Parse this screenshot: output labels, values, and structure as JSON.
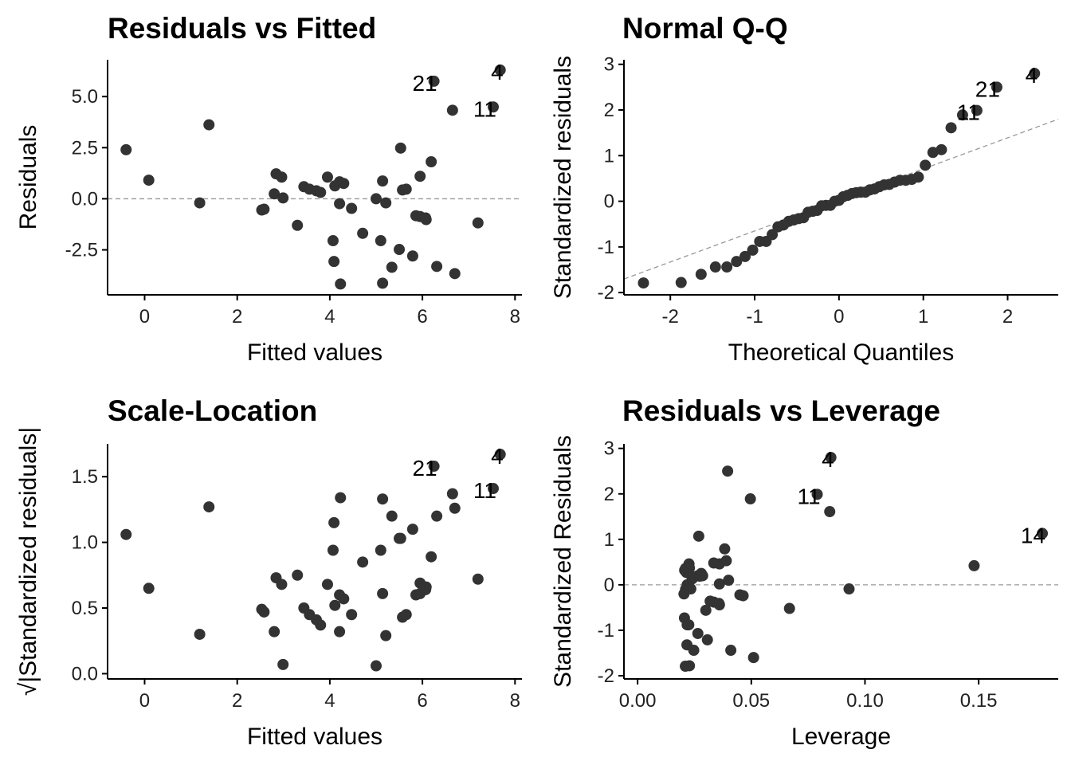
{
  "chart_data": [
    {
      "type": "scatter",
      "title": "Residuals vs Fitted",
      "xlabel": "Fitted values",
      "ylabel": "Residuals",
      "xlim": [
        -0.8,
        8.15
      ],
      "ylim": [
        -4.7,
        6.8
      ],
      "xticks": [
        "0",
        "2",
        "4",
        "6",
        "8"
      ],
      "yticks": [
        "5.0",
        "2.5",
        "0.0",
        "-2.5"
      ],
      "reference_line": {
        "type": "horizontal",
        "y": 0,
        "style": "dashed"
      },
      "x": [
        -0.4,
        0.09,
        1.19,
        1.39,
        2.53,
        2.58,
        2.84,
        2.8,
        2.96,
        2.99,
        3.3,
        3.44,
        3.56,
        3.71,
        3.8,
        3.95,
        4.07,
        4.09,
        4.11,
        4.21,
        4.21,
        4.23,
        4.3,
        4.47,
        4.71,
        5.0,
        5.1,
        5.14,
        5.14,
        5.21,
        5.34,
        5.5,
        5.53,
        5.57,
        5.65,
        5.79,
        5.86,
        5.95,
        5.95,
        6.07,
        6.08,
        6.19,
        6.31,
        6.65,
        6.7,
        7.2,
        6.25,
        7.53,
        7.68
      ],
      "y": [
        2.4,
        0.91,
        -0.2,
        3.62,
        -0.55,
        -0.51,
        1.22,
        0.24,
        1.06,
        0.04,
        -1.3,
        0.59,
        0.47,
        0.39,
        0.31,
        1.06,
        -2.05,
        -3.07,
        0.63,
        0.83,
        -0.24,
        -4.17,
        0.75,
        -0.47,
        -1.69,
        0.0,
        -2.05,
        0.87,
        -4.13,
        -0.2,
        -3.35,
        -2.48,
        2.48,
        0.43,
        0.47,
        -2.8,
        -0.83,
        -0.87,
        1.1,
        -0.94,
        -1.02,
        1.81,
        -3.31,
        4.33,
        -3.66,
        -1.18,
        5.75,
        4.49,
        6.3
      ],
      "point_labels": [
        {
          "index": 46,
          "text": "21"
        },
        {
          "index": 47,
          "text": "11"
        },
        {
          "index": 48,
          "text": "4"
        }
      ]
    },
    {
      "type": "scatter",
      "title": "Normal Q-Q",
      "xlabel": "Theoretical Quantiles",
      "ylabel": "Standardized residuals",
      "xlim": [
        -2.55,
        2.6
      ],
      "ylim": [
        -2.05,
        3.1
      ],
      "xticks": [
        "-2",
        "-1",
        "0",
        "1",
        "2"
      ],
      "yticks": [
        "3",
        "2",
        "1",
        "0",
        "-1",
        "-2"
      ],
      "reference_line": {
        "type": "line",
        "intercept": 0.03,
        "slope": 0.68,
        "style": "dashed"
      },
      "sample": [
        1.13,
        0.42,
        -0.09,
        1.61,
        -0.24,
        -0.22,
        0.53,
        0.1,
        0.46,
        0.02,
        -0.56,
        0.25,
        0.2,
        0.17,
        0.13,
        0.46,
        -0.88,
        -1.32,
        0.27,
        0.36,
        -0.1,
        -1.79,
        0.32,
        -0.2,
        -0.73,
        0.0,
        -0.88,
        0.37,
        -1.78,
        -0.09,
        -1.44,
        -1.07,
        1.07,
        0.19,
        0.2,
        -1.21,
        -0.36,
        -0.38,
        0.48,
        -0.41,
        -0.44,
        0.79,
        -1.44,
        1.89,
        -1.6,
        -0.52,
        2.5,
        1.99,
        2.8
      ],
      "point_labels": [
        {
          "index": 46,
          "text": "21"
        },
        {
          "index": 47,
          "text": "11"
        },
        {
          "index": 48,
          "text": "4"
        }
      ]
    },
    {
      "type": "scatter",
      "title": "Scale-Location",
      "xlabel": "Fitted values",
      "ylabel": "√|Standardized residuals|",
      "xlim": [
        -0.8,
        8.15
      ],
      "ylim": [
        -0.04,
        1.75
      ],
      "xticks": [
        "0",
        "2",
        "4",
        "6",
        "8"
      ],
      "yticks": [
        "1.5",
        "1.0",
        "0.5",
        "0.0"
      ],
      "x": [
        -0.4,
        0.09,
        1.19,
        1.39,
        2.53,
        2.58,
        2.84,
        2.8,
        2.96,
        2.99,
        3.3,
        3.44,
        3.56,
        3.71,
        3.8,
        3.95,
        4.07,
        4.09,
        4.11,
        4.21,
        4.21,
        4.23,
        4.3,
        4.47,
        4.71,
        5.0,
        5.1,
        5.14,
        5.14,
        5.21,
        5.34,
        5.5,
        5.53,
        5.57,
        5.65,
        5.79,
        5.86,
        5.95,
        5.95,
        6.07,
        6.08,
        6.19,
        6.31,
        6.65,
        6.7,
        7.2,
        6.25,
        7.53,
        7.68
      ],
      "y": [
        1.06,
        0.65,
        0.3,
        1.27,
        0.49,
        0.47,
        0.73,
        0.32,
        0.68,
        0.07,
        0.75,
        0.5,
        0.45,
        0.41,
        0.37,
        0.68,
        0.94,
        1.15,
        0.52,
        0.6,
        0.32,
        1.34,
        0.57,
        0.45,
        0.85,
        0.06,
        0.94,
        0.61,
        1.33,
        0.29,
        1.2,
        1.03,
        1.03,
        0.43,
        0.45,
        1.1,
        0.6,
        0.61,
        0.69,
        0.64,
        0.66,
        0.89,
        1.2,
        1.37,
        1.26,
        0.72,
        1.58,
        1.41,
        1.67
      ],
      "point_labels": [
        {
          "index": 46,
          "text": "21"
        },
        {
          "index": 47,
          "text": "11"
        },
        {
          "index": 48,
          "text": "4"
        }
      ]
    },
    {
      "type": "scatter",
      "title": "Residuals vs Leverage",
      "xlabel": "Leverage",
      "ylabel": "Standardized Residuals",
      "xlim": [
        -0.006,
        0.185
      ],
      "ylim": [
        -2.07,
        3.1
      ],
      "xticks": [
        "0.00",
        "0.05",
        "0.10",
        "0.15"
      ],
      "yticks": [
        "3",
        "2",
        "1",
        "0",
        "-1",
        "-2"
      ],
      "reference_line": {
        "type": "horizontal",
        "y": 0,
        "style": "dashed"
      },
      "x": [
        0.178,
        0.148,
        0.093,
        0.0845,
        0.0464,
        0.045,
        0.039,
        0.04,
        0.036,
        0.036,
        0.03,
        0.028,
        0.0265,
        0.0248,
        0.024,
        0.0226,
        0.0218,
        0.0217,
        0.0215,
        0.0211,
        0.0211,
        0.021,
        0.0207,
        0.0204,
        0.0206,
        0.0218,
        0.0225,
        0.0228,
        0.0228,
        0.0234,
        0.0247,
        0.0265,
        0.0269,
        0.0274,
        0.0286,
        0.0307,
        0.0319,
        0.0335,
        0.0335,
        0.0358,
        0.036,
        0.0383,
        0.041,
        0.0496,
        0.051,
        0.0668,
        0.0396,
        0.079,
        0.085
      ],
      "y": [
        1.13,
        0.42,
        -0.09,
        1.61,
        -0.24,
        -0.22,
        0.53,
        0.1,
        0.46,
        0.02,
        -0.56,
        0.25,
        0.2,
        0.17,
        0.13,
        0.46,
        -0.88,
        -1.32,
        0.27,
        0.36,
        -0.1,
        -1.79,
        0.32,
        -0.2,
        -0.73,
        0.0,
        -0.88,
        0.37,
        -1.78,
        -0.09,
        -1.44,
        -1.07,
        1.07,
        0.19,
        0.2,
        -1.21,
        -0.36,
        -0.38,
        0.48,
        -0.41,
        -0.44,
        0.79,
        -1.44,
        1.89,
        -1.6,
        -0.52,
        2.5,
        1.99,
        2.8
      ],
      "point_labels": [
        {
          "index": 0,
          "text": "14"
        },
        {
          "index": 47,
          "text": "11"
        },
        {
          "index": 48,
          "text": "4"
        }
      ]
    }
  ],
  "colors": {
    "points": "#333333",
    "reference_line": "#999999",
    "axis": "#000000"
  }
}
